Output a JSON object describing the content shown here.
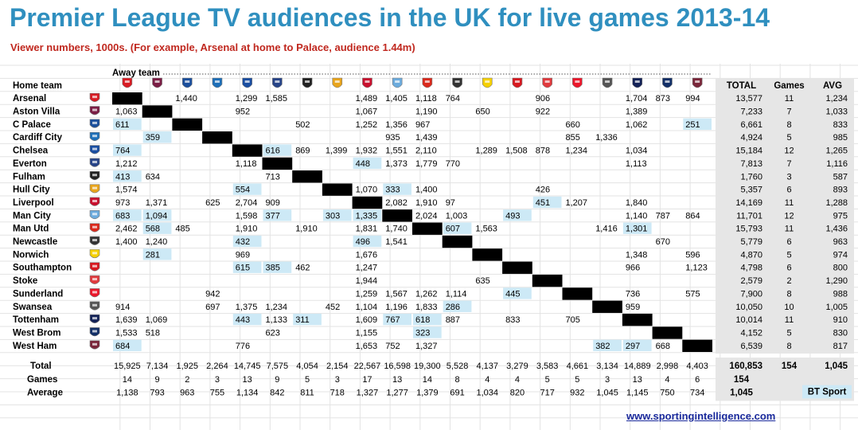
{
  "title": "Premier League TV audiences in the UK for live games 2013-14",
  "subtitle": "Viewer numbers, 1000s. (For example, Arsenal at home to Palace, audience 1.44m)",
  "away_team_label": "Away team",
  "home_team_label": "Home team",
  "website": "www.sportingintelligence.com",
  "colors": {
    "title": "#2f8fbf",
    "subtitle": "#c0281f",
    "bt_sport_highlight": "#cde9f6",
    "total_panel": "#e6e6e6",
    "diagonal": "#000000",
    "website": "#1a2a9c"
  },
  "chart_data": {
    "type": "table",
    "teams": [
      "Arsenal",
      "Aston Villa",
      "C Palace",
      "Cardiff City",
      "Chelsea",
      "Everton",
      "Fulham",
      "Hull City",
      "Liverpool",
      "Man City",
      "Man Utd",
      "Newcastle",
      "Norwich",
      "Southampton",
      "Stoke",
      "Sunderland",
      "Swansea",
      "Tottenham",
      "West Brom",
      "West Ham"
    ],
    "crest_icons": [
      "arsenal-crest-icon",
      "aston-villa-crest-icon",
      "crystal-palace-crest-icon",
      "cardiff-city-crest-icon",
      "chelsea-crest-icon",
      "everton-crest-icon",
      "fulham-crest-icon",
      "hull-city-crest-icon",
      "liverpool-crest-icon",
      "man-city-crest-icon",
      "man-utd-crest-icon",
      "newcastle-crest-icon",
      "norwich-crest-icon",
      "southampton-crest-icon",
      "stoke-crest-icon",
      "sunderland-crest-icon",
      "swansea-crest-icon",
      "tottenham-crest-icon",
      "west-brom-crest-icon",
      "west-ham-crest-icon"
    ],
    "crest_colors": [
      "#d81c24",
      "#7b1e45",
      "#1b4f9c",
      "#1e6fb8",
      "#1a4ea1",
      "#274488",
      "#222222",
      "#e8a41c",
      "#c8102e",
      "#6cabdd",
      "#da291c",
      "#333333",
      "#f5d000",
      "#d71920",
      "#e03a3e",
      "#eb172b",
      "#555555",
      "#132257",
      "#122f67",
      "#7a263a"
    ],
    "row_headers": [
      "TOTAL",
      "Games",
      "AVG"
    ],
    "matrix": [
      [
        null,
        null,
        "1,440",
        null,
        "1,299",
        "1,585",
        null,
        null,
        "1,489",
        "1,405",
        "1,118",
        "764",
        null,
        null,
        "906",
        null,
        null,
        "1,704",
        "873",
        "994"
      ],
      [
        "1,063",
        null,
        null,
        null,
        "952",
        null,
        null,
        null,
        "1,067",
        null,
        "1,190",
        null,
        "650",
        null,
        "922",
        null,
        null,
        "1,389",
        null,
        null
      ],
      [
        "611",
        null,
        null,
        null,
        null,
        null,
        "502",
        null,
        "1,252",
        "1,356",
        "967",
        null,
        null,
        null,
        null,
        "660",
        null,
        "1,062",
        null,
        "251"
      ],
      [
        null,
        "359",
        null,
        null,
        null,
        null,
        null,
        null,
        null,
        "935",
        "1,439",
        null,
        null,
        null,
        null,
        "855",
        "1,336",
        null,
        null,
        null
      ],
      [
        "764",
        null,
        null,
        null,
        null,
        "616",
        "869",
        "1,399",
        "1,932",
        "1,551",
        "2,110",
        null,
        "1,289",
        "1,508",
        "878",
        "1,234",
        null,
        "1,034",
        null,
        null
      ],
      [
        "1,212",
        null,
        null,
        null,
        "1,118",
        null,
        null,
        null,
        "448",
        "1,373",
        "1,779",
        "770",
        null,
        null,
        null,
        null,
        null,
        "1,113",
        null,
        null
      ],
      [
        "413",
        "634",
        null,
        null,
        null,
        "713",
        null,
        null,
        null,
        null,
        null,
        null,
        null,
        null,
        null,
        null,
        null,
        null,
        null,
        null
      ],
      [
        "1,574",
        null,
        null,
        null,
        "554",
        null,
        null,
        null,
        "1,070",
        "333",
        "1,400",
        null,
        null,
        null,
        "426",
        null,
        null,
        null,
        null,
        null
      ],
      [
        "973",
        "1,371",
        null,
        "625",
        "2,704",
        "909",
        null,
        null,
        null,
        "2,082",
        "1,910",
        "97",
        null,
        null,
        "451",
        "1,207",
        null,
        "1,840",
        null,
        null
      ],
      [
        "683",
        "1,094",
        null,
        null,
        "1,598",
        "377",
        null,
        "303",
        "1,335",
        null,
        "2,024",
        "1,003",
        null,
        "493",
        null,
        null,
        null,
        "1,140",
        "787",
        "864"
      ],
      [
        "2,462",
        "568",
        "485",
        null,
        "1,910",
        null,
        "1,910",
        null,
        "1,831",
        "1,740",
        null,
        "607",
        "1,563",
        null,
        null,
        null,
        "1,416",
        "1,301",
        null,
        null
      ],
      [
        "1,400",
        "1,240",
        null,
        null,
        "432",
        null,
        null,
        null,
        "496",
        "1,541",
        null,
        null,
        null,
        null,
        null,
        null,
        null,
        null,
        "670",
        null
      ],
      [
        null,
        "281",
        null,
        null,
        "969",
        null,
        null,
        null,
        "1,676",
        null,
        null,
        null,
        null,
        null,
        null,
        null,
        null,
        "1,348",
        null,
        "596"
      ],
      [
        null,
        null,
        null,
        null,
        "615",
        "385",
        "462",
        null,
        "1,247",
        null,
        null,
        null,
        null,
        null,
        null,
        null,
        null,
        "966",
        null,
        "1,123"
      ],
      [
        null,
        null,
        null,
        null,
        null,
        null,
        null,
        null,
        "1,944",
        null,
        null,
        null,
        "635",
        null,
        null,
        null,
        null,
        null,
        null,
        null
      ],
      [
        null,
        null,
        null,
        "942",
        null,
        null,
        null,
        null,
        "1,259",
        "1,567",
        "1,262",
        "1,114",
        null,
        "445",
        null,
        null,
        null,
        "736",
        null,
        "575"
      ],
      [
        "914",
        null,
        null,
        "697",
        "1,375",
        "1,234",
        null,
        "452",
        "1,104",
        "1,196",
        "1,833",
        "286",
        null,
        null,
        null,
        null,
        null,
        "959",
        null,
        null
      ],
      [
        "1,639",
        "1,069",
        null,
        null,
        "443",
        "1,133",
        "311",
        null,
        "1,609",
        "767",
        "618",
        "887",
        null,
        "833",
        null,
        "705",
        null,
        null,
        null,
        null
      ],
      [
        "1,533",
        "518",
        null,
        null,
        null,
        "623",
        null,
        null,
        "1,155",
        null,
        "323",
        null,
        null,
        null,
        null,
        null,
        null,
        null,
        null,
        null
      ],
      [
        "684",
        null,
        null,
        null,
        "776",
        null,
        null,
        null,
        "1,653",
        "752",
        "1,327",
        null,
        null,
        null,
        null,
        null,
        "382",
        "297",
        "668",
        null
      ]
    ],
    "bt_sport": [
      [],
      [],
      [
        0,
        19
      ],
      [
        1
      ],
      [
        0,
        5
      ],
      [
        8
      ],
      [
        0
      ],
      [
        4,
        9
      ],
      [
        14
      ],
      [
        0,
        1,
        5,
        7,
        8,
        13
      ],
      [
        1,
        11,
        17
      ],
      [
        4,
        8
      ],
      [
        1
      ],
      [
        4,
        5
      ],
      [],
      [
        13
      ],
      [
        11
      ],
      [
        4,
        6,
        9,
        10
      ],
      [
        10
      ],
      [
        0,
        16,
        17
      ]
    ],
    "row_totals": [
      [
        "13,577",
        "11",
        "1,234"
      ],
      [
        "7,233",
        "7",
        "1,033"
      ],
      [
        "6,661",
        "8",
        "833"
      ],
      [
        "4,924",
        "5",
        "985"
      ],
      [
        "15,184",
        "12",
        "1,265"
      ],
      [
        "7,813",
        "7",
        "1,116"
      ],
      [
        "1,760",
        "3",
        "587"
      ],
      [
        "5,357",
        "6",
        "893"
      ],
      [
        "14,169",
        "11",
        "1,288"
      ],
      [
        "11,701",
        "12",
        "975"
      ],
      [
        "15,793",
        "11",
        "1,436"
      ],
      [
        "5,779",
        "6",
        "963"
      ],
      [
        "4,870",
        "5",
        "974"
      ],
      [
        "4,798",
        "6",
        "800"
      ],
      [
        "2,579",
        "2",
        "1,290"
      ],
      [
        "7,900",
        "8",
        "988"
      ],
      [
        "10,050",
        "10",
        "1,005"
      ],
      [
        "10,014",
        "11",
        "910"
      ],
      [
        "4,152",
        "5",
        "830"
      ],
      [
        "6,539",
        "8",
        "817"
      ]
    ],
    "footer": {
      "labels": [
        "Total",
        "Games",
        "Average"
      ],
      "total": [
        "15,925",
        "7,134",
        "1,925",
        "2,264",
        "14,745",
        "7,575",
        "4,054",
        "2,154",
        "22,567",
        "16,598",
        "19,300",
        "5,528",
        "4,137",
        "3,279",
        "3,583",
        "4,661",
        "3,134",
        "14,889",
        "2,998",
        "4,403"
      ],
      "games": [
        "14",
        "9",
        "2",
        "3",
        "13",
        "9",
        "5",
        "3",
        "17",
        "13",
        "14",
        "8",
        "4",
        "4",
        "5",
        "5",
        "3",
        "13",
        "4",
        "6"
      ],
      "average": [
        "1,138",
        "793",
        "963",
        "755",
        "1,134",
        "842",
        "811",
        "718",
        "1,327",
        "1,277",
        "1,379",
        "691",
        "1,034",
        "820",
        "717",
        "932",
        "1,045",
        "1,145",
        "750",
        "734"
      ],
      "grand_total": [
        "160,853",
        "154",
        "1,045"
      ],
      "games_total": "154",
      "average_total": "1,045",
      "legend_label": "BT Sport"
    }
  }
}
